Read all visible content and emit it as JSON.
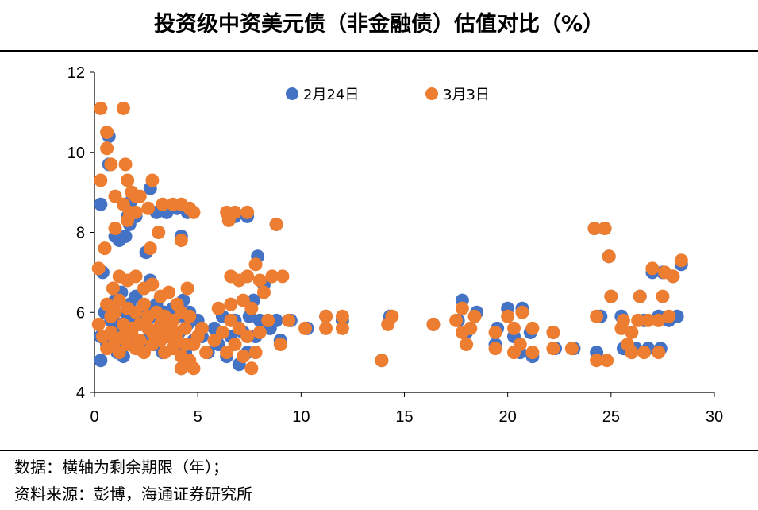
{
  "chart_data": {
    "type": "scatter",
    "title": "投资级中资美元债（非金融债）估值对比（%）",
    "xlim": [
      0,
      30
    ],
    "ylim": [
      4,
      12
    ],
    "xticks": [
      0,
      5,
      10,
      15,
      20,
      25,
      30
    ],
    "yticks": [
      4,
      6,
      8,
      10,
      12
    ],
    "grid": false,
    "legend_position": "top",
    "series": [
      {
        "name": "2月24日",
        "color": "#4472C4",
        "points": [
          [
            0.3,
            8.7
          ],
          [
            0.4,
            7.0
          ],
          [
            0.7,
            10.4
          ],
          [
            0.7,
            9.7
          ],
          [
            1.0,
            7.9
          ],
          [
            1.2,
            7.8
          ],
          [
            1.5,
            7.9
          ],
          [
            1.6,
            8.4
          ],
          [
            1.7,
            8.2
          ],
          [
            1.8,
            8.8
          ],
          [
            2.0,
            8.4
          ],
          [
            2.5,
            7.5
          ],
          [
            2.7,
            9.1
          ],
          [
            3.0,
            8.5
          ],
          [
            3.5,
            8.5
          ],
          [
            4.0,
            8.6
          ],
          [
            4.2,
            7.9
          ],
          [
            4.5,
            8.5
          ],
          [
            6.5,
            8.4
          ],
          [
            6.8,
            8.4
          ],
          [
            7.4,
            8.4
          ],
          [
            7.9,
            7.4
          ],
          [
            8.8,
            8.2
          ],
          [
            0.3,
            4.8
          ],
          [
            0.3,
            5.4
          ],
          [
            0.5,
            6.0
          ],
          [
            0.6,
            5.2
          ],
          [
            0.7,
            6.1
          ],
          [
            0.8,
            5.8
          ],
          [
            0.9,
            5.5
          ],
          [
            1.0,
            6.3
          ],
          [
            1.1,
            5.0
          ],
          [
            1.2,
            5.7
          ],
          [
            1.3,
            6.5
          ],
          [
            1.4,
            5.3
          ],
          [
            1.4,
            4.9
          ],
          [
            1.5,
            6.0
          ],
          [
            1.6,
            5.6
          ],
          [
            1.7,
            6.2
          ],
          [
            1.8,
            5.4
          ],
          [
            1.9,
            5.9
          ],
          [
            2.0,
            6.4
          ],
          [
            2.1,
            5.1
          ],
          [
            2.2,
            5.7
          ],
          [
            2.3,
            6.0
          ],
          [
            2.4,
            5.3
          ],
          [
            2.5,
            6.1
          ],
          [
            2.6,
            5.6
          ],
          [
            2.7,
            6.8
          ],
          [
            2.8,
            5.9
          ],
          [
            2.9,
            5.2
          ],
          [
            3.0,
            6.2
          ],
          [
            3.1,
            5.5
          ],
          [
            3.2,
            5.8
          ],
          [
            3.3,
            5.0
          ],
          [
            3.4,
            6.0
          ],
          [
            3.5,
            5.4
          ],
          [
            3.6,
            5.7
          ],
          [
            3.8,
            6.1
          ],
          [
            3.9,
            5.2
          ],
          [
            4.0,
            5.9
          ],
          [
            4.1,
            5.5
          ],
          [
            4.2,
            4.6
          ],
          [
            4.3,
            6.3
          ],
          [
            4.4,
            5.0
          ],
          [
            4.5,
            5.7
          ],
          [
            4.6,
            6.0
          ],
          [
            4.8,
            5.3
          ],
          [
            5.0,
            5.8
          ],
          [
            5.2,
            5.4
          ],
          [
            5.5,
            5.0
          ],
          [
            5.8,
            5.6
          ],
          [
            6.0,
            5.2
          ],
          [
            6.2,
            5.9
          ],
          [
            6.4,
            4.9
          ],
          [
            6.6,
            5.4
          ],
          [
            6.8,
            5.8
          ],
          [
            7.0,
            4.7
          ],
          [
            7.2,
            5.5
          ],
          [
            7.4,
            5.0
          ],
          [
            7.5,
            5.9
          ],
          [
            7.7,
            6.3
          ],
          [
            7.8,
            5.4
          ],
          [
            8.0,
            5.8
          ],
          [
            8.2,
            6.7
          ],
          [
            8.5,
            5.6
          ],
          [
            8.8,
            5.8
          ],
          [
            9.0,
            5.3
          ],
          [
            9.5,
            5.8
          ],
          [
            10.3,
            5.6
          ],
          [
            11.2,
            5.9
          ],
          [
            12.0,
            5.8
          ],
          [
            13.9,
            4.8
          ],
          [
            14.3,
            5.9
          ],
          [
            16.4,
            5.7
          ],
          [
            17.6,
            5.8
          ],
          [
            17.8,
            6.3
          ],
          [
            18.0,
            5.5
          ],
          [
            18.5,
            6.0
          ],
          [
            19.4,
            5.2
          ],
          [
            19.5,
            5.6
          ],
          [
            20.0,
            6.1
          ],
          [
            20.3,
            5.4
          ],
          [
            20.6,
            5.0
          ],
          [
            20.7,
            6.1
          ],
          [
            21.1,
            5.5
          ],
          [
            21.2,
            4.9
          ],
          [
            22.2,
            5.5
          ],
          [
            22.3,
            5.1
          ],
          [
            23.2,
            5.1
          ],
          [
            24.2,
            8.1
          ],
          [
            24.3,
            5.0
          ],
          [
            24.5,
            5.9
          ],
          [
            24.7,
            8.1
          ],
          [
            24.9,
            7.4
          ],
          [
            25.0,
            6.4
          ],
          [
            25.5,
            5.9
          ],
          [
            25.6,
            5.1
          ],
          [
            26.0,
            5.0
          ],
          [
            26.2,
            5.1
          ],
          [
            26.4,
            6.4
          ],
          [
            26.6,
            5.8
          ],
          [
            26.8,
            5.1
          ],
          [
            27.0,
            7.0
          ],
          [
            27.3,
            5.9
          ],
          [
            27.4,
            5.1
          ],
          [
            27.5,
            7.0
          ],
          [
            27.8,
            5.8
          ],
          [
            28.0,
            6.9
          ],
          [
            28.2,
            5.9
          ],
          [
            28.4,
            7.2
          ]
        ]
      },
      {
        "name": "3月3日",
        "color": "#ED7D31",
        "points": [
          [
            0.3,
            11.1
          ],
          [
            1.4,
            11.1
          ],
          [
            0.6,
            10.5
          ],
          [
            0.6,
            10.1
          ],
          [
            0.8,
            9.7
          ],
          [
            0.3,
            9.3
          ],
          [
            1.5,
            9.7
          ],
          [
            1.6,
            9.3
          ],
          [
            1.8,
            9.0
          ],
          [
            1.0,
            8.9
          ],
          [
            1.4,
            8.7
          ],
          [
            1.7,
            8.5
          ],
          [
            2.0,
            8.9
          ],
          [
            2.2,
            8.9
          ],
          [
            2.8,
            9.3
          ],
          [
            1.6,
            8.3
          ],
          [
            2.0,
            8.5
          ],
          [
            2.6,
            8.6
          ],
          [
            3.3,
            8.7
          ],
          [
            3.8,
            8.7
          ],
          [
            4.2,
            8.7
          ],
          [
            4.6,
            8.6
          ],
          [
            4.8,
            8.5
          ],
          [
            1.0,
            8.1
          ],
          [
            3.1,
            8.0
          ],
          [
            4.2,
            7.8
          ],
          [
            0.5,
            7.6
          ],
          [
            2.7,
            7.6
          ],
          [
            6.4,
            8.5
          ],
          [
            6.8,
            8.5
          ],
          [
            7.4,
            8.5
          ],
          [
            6.5,
            8.3
          ],
          [
            8.8,
            8.2
          ],
          [
            0.2,
            7.1
          ],
          [
            0.9,
            6.6
          ],
          [
            1.2,
            6.9
          ],
          [
            1.6,
            6.8
          ],
          [
            2.0,
            6.9
          ],
          [
            2.4,
            6.6
          ],
          [
            2.8,
            6.7
          ],
          [
            3.2,
            6.4
          ],
          [
            3.6,
            6.5
          ],
          [
            4.0,
            6.2
          ],
          [
            4.5,
            6.6
          ],
          [
            0.6,
            6.2
          ],
          [
            0.8,
            5.9
          ],
          [
            1.0,
            6.0
          ],
          [
            1.2,
            6.3
          ],
          [
            1.4,
            5.7
          ],
          [
            1.6,
            6.1
          ],
          [
            1.8,
            5.6
          ],
          [
            2.0,
            6.0
          ],
          [
            2.2,
            5.7
          ],
          [
            2.4,
            6.2
          ],
          [
            2.6,
            5.9
          ],
          [
            2.8,
            5.5
          ],
          [
            3.0,
            6.0
          ],
          [
            3.2,
            5.7
          ],
          [
            3.4,
            5.9
          ],
          [
            3.6,
            5.4
          ],
          [
            3.8,
            5.8
          ],
          [
            4.0,
            5.5
          ],
          [
            4.2,
            6.0
          ],
          [
            4.4,
            5.6
          ],
          [
            4.6,
            5.9
          ],
          [
            4.8,
            5.2
          ],
          [
            5.0,
            5.4
          ],
          [
            0.2,
            5.7
          ],
          [
            0.4,
            5.4
          ],
          [
            0.6,
            5.1
          ],
          [
            0.8,
            5.5
          ],
          [
            1.0,
            5.3
          ],
          [
            1.2,
            5.0
          ],
          [
            1.4,
            5.4
          ],
          [
            1.6,
            5.2
          ],
          [
            1.8,
            5.5
          ],
          [
            2.0,
            5.1
          ],
          [
            2.2,
            5.3
          ],
          [
            2.4,
            5.0
          ],
          [
            2.6,
            5.6
          ],
          [
            2.8,
            5.2
          ],
          [
            3.0,
            5.5
          ],
          [
            3.2,
            5.3
          ],
          [
            3.4,
            5.0
          ],
          [
            3.6,
            5.6
          ],
          [
            3.8,
            5.1
          ],
          [
            4.0,
            5.3
          ],
          [
            4.2,
            4.9
          ],
          [
            4.4,
            5.2
          ],
          [
            4.6,
            4.8
          ],
          [
            4.8,
            4.6
          ],
          [
            4.2,
            4.6
          ],
          [
            5.2,
            5.6
          ],
          [
            5.4,
            5.0
          ],
          [
            5.8,
            5.3
          ],
          [
            6.0,
            6.1
          ],
          [
            6.2,
            5.5
          ],
          [
            6.4,
            5.0
          ],
          [
            6.6,
            5.8
          ],
          [
            6.8,
            5.2
          ],
          [
            7.0,
            5.6
          ],
          [
            7.2,
            4.9
          ],
          [
            7.4,
            5.4
          ],
          [
            7.6,
            4.6
          ],
          [
            7.8,
            5.0
          ],
          [
            8.0,
            5.5
          ],
          [
            6.6,
            6.9
          ],
          [
            7.0,
            6.8
          ],
          [
            7.4,
            6.9
          ],
          [
            7.8,
            7.2
          ],
          [
            8.0,
            6.8
          ],
          [
            8.2,
            6.5
          ],
          [
            8.6,
            6.9
          ],
          [
            9.1,
            6.9
          ],
          [
            6.6,
            6.2
          ],
          [
            7.2,
            6.3
          ],
          [
            7.6,
            6.1
          ],
          [
            8.4,
            5.8
          ],
          [
            9.0,
            5.2
          ],
          [
            9.4,
            5.8
          ],
          [
            10.2,
            5.6
          ],
          [
            11.2,
            5.6
          ],
          [
            12.0,
            5.6
          ],
          [
            11.2,
            5.9
          ],
          [
            12.0,
            5.9
          ],
          [
            13.9,
            4.8
          ],
          [
            14.2,
            5.7
          ],
          [
            14.4,
            5.9
          ],
          [
            16.4,
            5.7
          ],
          [
            17.5,
            5.8
          ],
          [
            17.8,
            5.5
          ],
          [
            18.0,
            5.2
          ],
          [
            18.2,
            5.6
          ],
          [
            18.4,
            5.9
          ],
          [
            17.8,
            6.1
          ],
          [
            19.4,
            5.5
          ],
          [
            19.4,
            5.1
          ],
          [
            20.0,
            5.9
          ],
          [
            20.3,
            5.6
          ],
          [
            20.3,
            5.0
          ],
          [
            20.6,
            5.2
          ],
          [
            20.7,
            6.0
          ],
          [
            21.2,
            5.6
          ],
          [
            21.2,
            5.0
          ],
          [
            22.2,
            5.5
          ],
          [
            22.2,
            5.1
          ],
          [
            23.1,
            5.1
          ],
          [
            24.2,
            8.1
          ],
          [
            24.7,
            8.1
          ],
          [
            24.9,
            7.4
          ],
          [
            24.3,
            5.9
          ],
          [
            24.3,
            4.8
          ],
          [
            24.8,
            4.8
          ],
          [
            25.0,
            6.4
          ],
          [
            25.5,
            5.6
          ],
          [
            25.6,
            5.8
          ],
          [
            25.8,
            5.2
          ],
          [
            26.0,
            5.0
          ],
          [
            26.0,
            5.5
          ],
          [
            26.3,
            5.8
          ],
          [
            26.4,
            6.4
          ],
          [
            26.6,
            5.0
          ],
          [
            26.8,
            5.8
          ],
          [
            27.0,
            7.1
          ],
          [
            27.3,
            5.8
          ],
          [
            27.3,
            5.0
          ],
          [
            27.5,
            6.4
          ],
          [
            27.6,
            7.0
          ],
          [
            27.8,
            5.9
          ],
          [
            28.0,
            6.9
          ],
          [
            28.4,
            7.3
          ]
        ]
      }
    ]
  },
  "notes": {
    "line1": "数据：横轴为剩余期限（年）；",
    "line2": "资料来源：彭博，海通证券研究所"
  }
}
